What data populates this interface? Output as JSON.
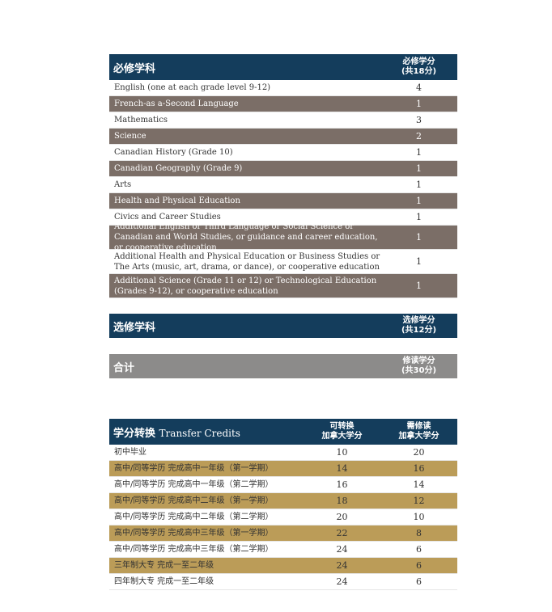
{
  "required": {
    "title": "必修学科",
    "col_line1": "必修学分",
    "col_line2": "(共18分)",
    "rows": [
      {
        "name": "English (one at each grade level 9-12)",
        "credits": "4"
      },
      {
        "name": "French-as a-Second Language",
        "credits": "1"
      },
      {
        "name": "Mathematics",
        "credits": "3"
      },
      {
        "name": "Science",
        "credits": "2"
      },
      {
        "name": "Canadian History (Grade 10)",
        "credits": "1"
      },
      {
        "name": "Canadian Geography (Grade 9)",
        "credits": "1"
      },
      {
        "name": "Arts",
        "credits": "1"
      },
      {
        "name": "Health and Physical Education",
        "credits": "1"
      },
      {
        "name": "Civics and Career Studies",
        "credits": "1"
      },
      {
        "name": "Additional English or Third Language or Social Science or Canadian and World Studies, or guidance and career education, or cooperative education",
        "credits": "1"
      },
      {
        "name": "Additional Health and Physical Education or Business Studies or The Arts (music, art, drama, or dance), or cooperative education",
        "credits": "1"
      },
      {
        "name": "Additional Science (Grade 11 or 12) or Technological Education (Grades 9-12), or cooperative education",
        "credits": "1"
      }
    ]
  },
  "elective": {
    "title": "选修学科",
    "col_line1": "选修学分",
    "col_line2": "(共12分)"
  },
  "total": {
    "title": "合计",
    "col_line1": "修读学分",
    "col_line2": "(共30分)"
  },
  "transfer": {
    "title_cn": "学分转换",
    "title_en": "Transfer Credits",
    "col1_line1": "可转换",
    "col1_line2": "加拿大学分",
    "col2_line1": "需修读",
    "col2_line2": "加拿大学分",
    "rows": [
      {
        "name": "初中毕业",
        "transfer": "10",
        "required": "20"
      },
      {
        "name": "高中/同等学历 完成高中一年级（第一学期）",
        "transfer": "14",
        "required": "16"
      },
      {
        "name": "高中/同等学历 完成高中一年级（第二学期）",
        "transfer": "16",
        "required": "14"
      },
      {
        "name": "高中/同等学历 完成高中二年级（第一学期）",
        "transfer": "18",
        "required": "12"
      },
      {
        "name": "高中/同等学历 完成高中二年级（第二学期）",
        "transfer": "20",
        "required": "10"
      },
      {
        "name": "高中/同等学历 完成高中三年级（第一学期）",
        "transfer": "22",
        "required": "8"
      },
      {
        "name": "高中/同等学历 完成高中三年级（第二学期）",
        "transfer": "24",
        "required": "6"
      },
      {
        "name": "三年制大专 完成一至二年级",
        "transfer": "24",
        "required": "6"
      },
      {
        "name": "四年制大专 完成一至二年级",
        "transfer": "24",
        "required": "6"
      }
    ]
  },
  "colors": {
    "navy": "#143d5c",
    "brown": "#7b6e67",
    "gold": "#bb9c58",
    "gray": "#8c8b8a"
  }
}
